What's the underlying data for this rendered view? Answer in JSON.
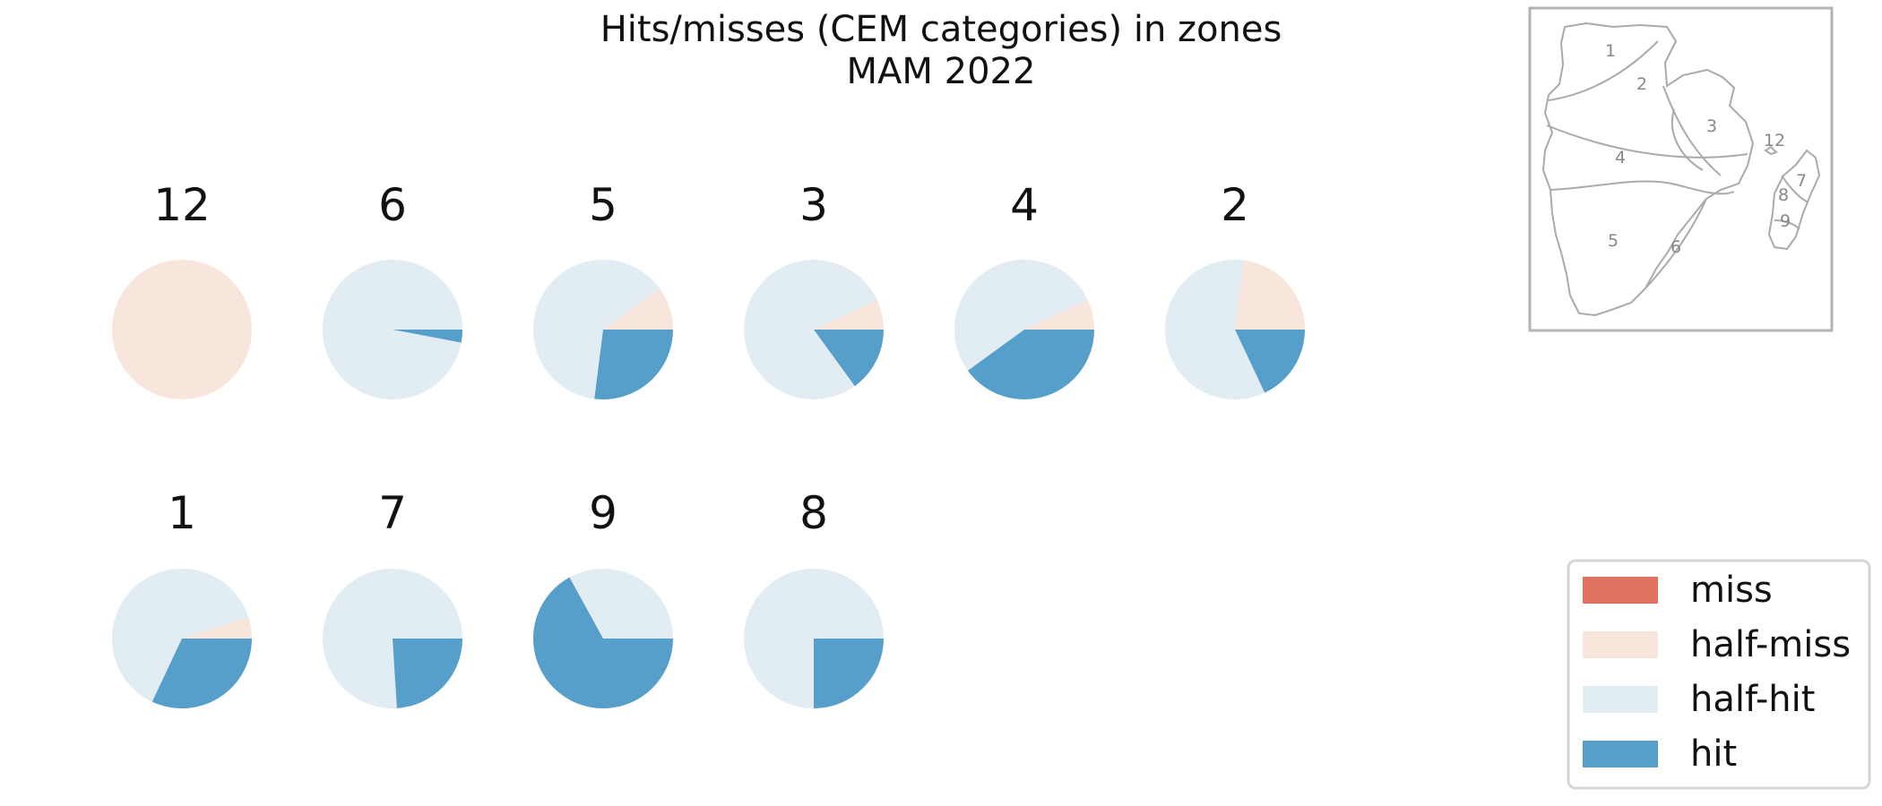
{
  "title": {
    "line1": "Hits/misses (CEM categories) in zones",
    "line2": "MAM 2022"
  },
  "colors": {
    "miss": "#e07360",
    "half-miss": "#f8e6dc",
    "half-hit": "#e2ecf3",
    "hit": "#569fcb"
  },
  "legend": {
    "placement": "bottom-right",
    "items": [
      {
        "key": "miss",
        "label": "miss"
      },
      {
        "key": "half-miss",
        "label": "half-miss"
      },
      {
        "key": "half-hit",
        "label": "half-hit"
      },
      {
        "key": "hit",
        "label": "hit"
      }
    ]
  },
  "inset_map": {
    "zone_labels": [
      "1",
      "2",
      "3",
      "4",
      "5",
      "6",
      "7",
      "8",
      "9",
      "12"
    ]
  },
  "chart_data": {
    "type": "pie",
    "title": "Hits/misses (CEM categories) in zones",
    "subtitle": "MAM 2022",
    "categories": [
      "miss",
      "half-miss",
      "half-hit",
      "hit"
    ],
    "start_angle_deg": 0,
    "direction": "counterclockwise",
    "pies": [
      {
        "zone": "12",
        "values": {
          "miss": 0,
          "half-miss": 1.0,
          "half-hit": 0,
          "hit": 0
        }
      },
      {
        "zone": "6",
        "values": {
          "miss": 0,
          "half-miss": 0,
          "half-hit": 0.97,
          "hit": 0.03
        }
      },
      {
        "zone": "5",
        "values": {
          "miss": 0,
          "half-miss": 0.1,
          "half-hit": 0.63,
          "hit": 0.27
        }
      },
      {
        "zone": "3",
        "values": {
          "miss": 0,
          "half-miss": 0.07,
          "half-hit": 0.78,
          "hit": 0.15
        }
      },
      {
        "zone": "4",
        "values": {
          "miss": 0,
          "half-miss": 0.07,
          "half-hit": 0.53,
          "hit": 0.4
        }
      },
      {
        "zone": "2",
        "values": {
          "miss": 0,
          "half-miss": 0.23,
          "half-hit": 0.59,
          "hit": 0.18
        }
      },
      {
        "zone": "1",
        "values": {
          "miss": 0,
          "half-miss": 0.05,
          "half-hit": 0.63,
          "hit": 0.32
        }
      },
      {
        "zone": "7",
        "values": {
          "miss": 0,
          "half-miss": 0,
          "half-hit": 0.76,
          "hit": 0.24
        }
      },
      {
        "zone": "9",
        "values": {
          "miss": 0,
          "half-miss": 0,
          "half-hit": 0.33,
          "hit": 0.67
        }
      },
      {
        "zone": "8",
        "values": {
          "miss": 0,
          "half-miss": 0,
          "half-hit": 0.75,
          "hit": 0.25
        }
      }
    ]
  }
}
